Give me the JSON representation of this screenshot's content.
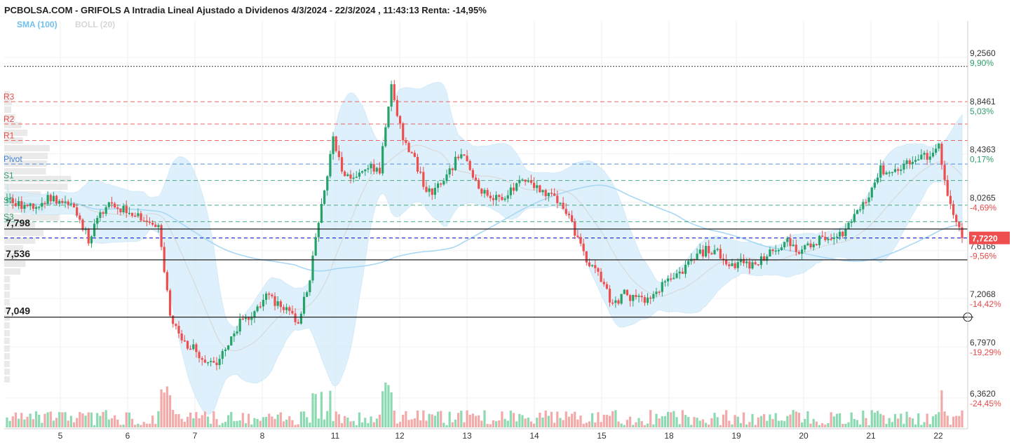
{
  "title": "PCBOLSA.COM - GRIFOLS A Intradia Lineal Ajustado a Dividenos 4/3/2024 - 22/3/2024 , 11:43:13 Renta: -14,95%",
  "legend": {
    "sma": "SMA (100)",
    "boll": "BOLL (20)"
  },
  "colors": {
    "up": "#26a269",
    "down": "#ef4e4e",
    "band": "#d4ecfa",
    "sma": "#a9d8f5",
    "pivot": "#3a80d6",
    "resistance": "#e84c4c",
    "support_dash": "#2e9e6b",
    "current": "#ef4e4e"
  },
  "chart_data": {
    "type": "candlestick",
    "y_range": [
      6.25,
      9.35
    ],
    "x_tick_labels": [
      "5",
      "6",
      "7",
      "8",
      "11",
      "12",
      "13",
      "14",
      "15",
      "18",
      "19",
      "20",
      "21",
      "22"
    ],
    "price_ticks": [
      {
        "price": 9.256,
        "label": "9,2560",
        "pct": "9,90%",
        "sign": "pos"
      },
      {
        "price": 8.8461,
        "label": "8,8461",
        "pct": "5,03%",
        "sign": "pos"
      },
      {
        "price": 8.4363,
        "label": "8,4363",
        "pct": "0,17%",
        "sign": "pos"
      },
      {
        "price": 8.0265,
        "label": "8,0265",
        "pct": "-4,69%",
        "sign": "neg"
      },
      {
        "price": 7.6166,
        "label": "7,6166",
        "pct": "-9,56%",
        "sign": "neg"
      },
      {
        "price": 7.2068,
        "label": "7,2068",
        "pct": "-14,42%",
        "sign": "neg"
      },
      {
        "price": 6.797,
        "label": "6,7970",
        "pct": "-19,29%",
        "sign": "neg"
      },
      {
        "price": 6.362,
        "label": "6,3620",
        "pct": "-24,45%",
        "sign": "neg"
      }
    ],
    "current_price": {
      "price": 7.722,
      "label": "7,7220"
    },
    "reference_high": 9.18,
    "pivot_levels": [
      {
        "name": "R3",
        "price": 8.88,
        "kind": "resistance"
      },
      {
        "name": "R2",
        "price": 8.69,
        "kind": "resistance"
      },
      {
        "name": "R1",
        "price": 8.55,
        "kind": "resistance"
      },
      {
        "name": "Pivot",
        "price": 8.35,
        "kind": "pivot"
      },
      {
        "name": "S1",
        "price": 8.21,
        "kind": "support"
      },
      {
        "name": "S2",
        "price": 8.0,
        "kind": "support"
      },
      {
        "name": "S3",
        "price": 7.86,
        "kind": "support"
      }
    ],
    "support_lines": [
      {
        "label": "7,798",
        "price": 7.798
      },
      {
        "label": "7,536",
        "price": 7.536
      },
      {
        "label": "7,049",
        "price": 7.049
      }
    ],
    "close_series": [
      8.05,
      8.0,
      7.98,
      8.04,
      8.06,
      8.0,
      7.95,
      7.7,
      7.92,
      8.01,
      7.96,
      7.94,
      7.86,
      7.82,
      7.05,
      6.85,
      6.78,
      6.7,
      6.66,
      6.8,
      7.0,
      7.05,
      7.22,
      7.18,
      7.12,
      7.0,
      7.4,
      8.0,
      8.55,
      8.25,
      8.28,
      8.32,
      8.3,
      9.03,
      8.55,
      8.4,
      8.1,
      8.15,
      8.3,
      8.45,
      8.25,
      8.1,
      8.05,
      8.1,
      8.18,
      8.2,
      8.12,
      8.08,
      7.95,
      7.7,
      7.5,
      7.38,
      7.15,
      7.25,
      7.2,
      7.18,
      7.3,
      7.35,
      7.45,
      7.55,
      7.62,
      7.6,
      7.48,
      7.52,
      7.48,
      7.55,
      7.65,
      7.68,
      7.62,
      7.65,
      7.72,
      7.7,
      7.8,
      7.95,
      8.1,
      8.3,
      8.28,
      8.35,
      8.38,
      8.42,
      8.5,
      7.98,
      7.72
    ]
  }
}
